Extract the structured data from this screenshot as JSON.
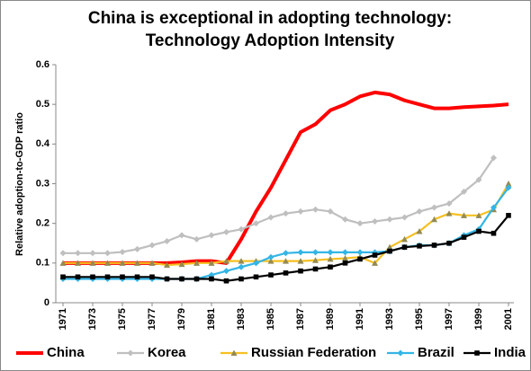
{
  "chart_data": {
    "type": "line",
    "title": [
      "China is exceptional in adopting technology:",
      "Technology Adoption Intensity"
    ],
    "ylabel": "Relative adoption-to-GDP ratio",
    "x": [
      1971,
      1972,
      1973,
      1974,
      1975,
      1976,
      1977,
      1978,
      1979,
      1980,
      1981,
      1982,
      1983,
      1984,
      1985,
      1986,
      1987,
      1988,
      1989,
      1990,
      1991,
      1992,
      1993,
      1994,
      1995,
      1996,
      1997,
      1998,
      1999,
      2000,
      2001
    ],
    "xlim": [
      1971,
      2001
    ],
    "xticks": [
      1971,
      1973,
      1975,
      1977,
      1979,
      1981,
      1983,
      1985,
      1987,
      1989,
      1991,
      1993,
      1995,
      1997,
      1999,
      2001
    ],
    "ylim": [
      0,
      0.6
    ],
    "yticks": [
      0,
      0.1,
      0.2,
      0.3,
      0.4,
      0.5,
      0.6
    ],
    "grid": false,
    "legend": "bottom",
    "series": [
      {
        "name": "China",
        "color": "#ff0000",
        "marker": "none",
        "values": [
          0.1,
          0.1,
          0.1,
          0.1,
          0.1,
          0.1,
          0.1,
          0.1,
          0.102,
          0.105,
          0.105,
          0.1,
          0.16,
          0.23,
          0.29,
          0.36,
          0.43,
          0.45,
          0.485,
          0.5,
          0.52,
          0.53,
          0.525,
          0.51,
          0.5,
          0.49,
          0.49,
          0.493,
          0.495,
          0.497,
          0.5
        ]
      },
      {
        "name": "Korea",
        "color": "#bfbfbf",
        "marker": "diamond",
        "values": [
          0.125,
          0.125,
          0.125,
          0.125,
          0.128,
          0.135,
          0.145,
          0.155,
          0.17,
          0.16,
          0.17,
          0.178,
          0.185,
          0.2,
          0.215,
          0.225,
          0.23,
          0.235,
          0.23,
          0.21,
          0.2,
          0.205,
          0.21,
          0.215,
          0.23,
          0.24,
          0.25,
          0.28,
          0.31,
          0.365,
          null
        ]
      },
      {
        "name": "Russian Federation",
        "color": "#f5c020",
        "marker": "triangle",
        "values": [
          0.1,
          0.1,
          0.1,
          0.1,
          0.1,
          0.1,
          0.1,
          0.095,
          0.097,
          0.1,
          0.1,
          0.105,
          0.105,
          0.105,
          0.105,
          0.105,
          0.105,
          0.107,
          0.11,
          0.112,
          0.115,
          0.1,
          0.14,
          0.16,
          0.18,
          0.21,
          0.225,
          0.22,
          0.22,
          0.235,
          0.3
        ]
      },
      {
        "name": "Brazil",
        "color": "#33b5e5",
        "marker": "diamond",
        "values": [
          0.06,
          0.06,
          0.06,
          0.06,
          0.06,
          0.06,
          0.06,
          0.06,
          0.06,
          0.06,
          0.07,
          0.08,
          0.09,
          0.1,
          0.115,
          0.125,
          0.127,
          0.127,
          0.127,
          0.127,
          0.127,
          0.127,
          0.13,
          0.14,
          0.145,
          0.145,
          0.15,
          0.17,
          0.185,
          0.24,
          0.29
        ]
      },
      {
        "name": "India",
        "color": "#000000",
        "marker": "square",
        "values": [
          0.065,
          0.065,
          0.065,
          0.065,
          0.065,
          0.065,
          0.065,
          0.06,
          0.06,
          0.06,
          0.06,
          0.055,
          0.06,
          0.065,
          0.07,
          0.075,
          0.08,
          0.085,
          0.09,
          0.1,
          0.11,
          0.12,
          0.13,
          0.14,
          0.143,
          0.145,
          0.15,
          0.165,
          0.18,
          0.175,
          0.22
        ]
      }
    ]
  }
}
